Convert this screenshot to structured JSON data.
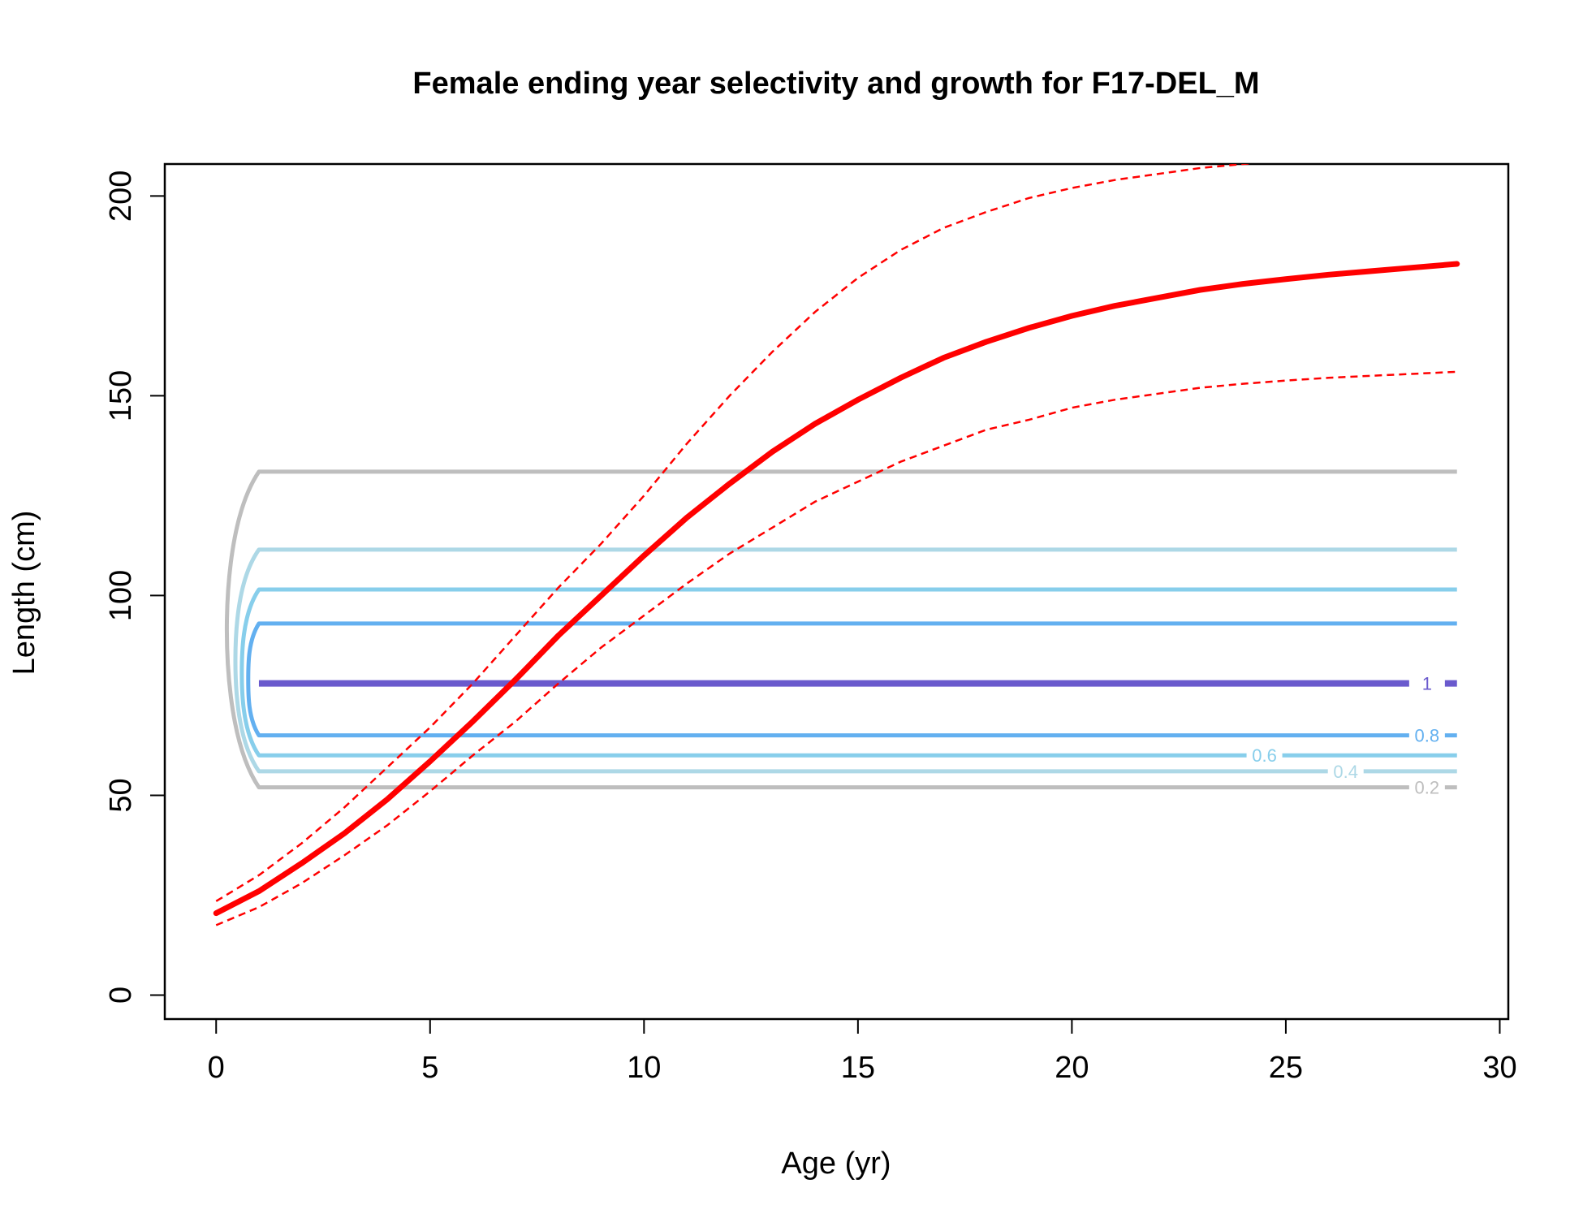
{
  "chart_data": {
    "type": "line",
    "title": "Female ending year selectivity and growth for F17-DEL_M",
    "xlabel": "Age (yr)",
    "ylabel": "Length (cm)",
    "xlim": [
      -1.2,
      30.2
    ],
    "ylim": [
      -6,
      208
    ],
    "x_ticks": [
      0,
      5,
      10,
      15,
      20,
      25,
      30
    ],
    "y_ticks": [
      0,
      50,
      100,
      150,
      200
    ],
    "grid": false,
    "legend": "none",
    "growth": {
      "color": "#ff0000",
      "ages": [
        0,
        1,
        2,
        3,
        4,
        5,
        6,
        7,
        8,
        9,
        10,
        11,
        12,
        13,
        14,
        15,
        16,
        17,
        18,
        19,
        20,
        21,
        22,
        23,
        24,
        25,
        26,
        27,
        28,
        29
      ],
      "mean": [
        20.5,
        26,
        33,
        40.5,
        49,
        58.5,
        68.5,
        79,
        90,
        100,
        110,
        119.5,
        128,
        136,
        143,
        149,
        154.5,
        159.5,
        163.5,
        167,
        170,
        172.5,
        174.5,
        176.5,
        178,
        179.2,
        180.3,
        181.2,
        182.1,
        183
      ],
      "upper": [
        23.5,
        30,
        38,
        47,
        57,
        67,
        78,
        90,
        102,
        113,
        125,
        138,
        150,
        161,
        171,
        179.5,
        186.5,
        192,
        196,
        199.5,
        202,
        204,
        205.5,
        207,
        208,
        209,
        209.5,
        210,
        210.5,
        211
      ],
      "lower": [
        17.5,
        22,
        28,
        35,
        42.5,
        51,
        60,
        68.5,
        78,
        87,
        95,
        103,
        110.5,
        117,
        123.5,
        128.5,
        133.5,
        137.5,
        141.5,
        144,
        147,
        149,
        150.5,
        152,
        153,
        153.8,
        154.5,
        155,
        155.5,
        156
      ]
    },
    "selectivity_contours": [
      {
        "level": "0.2",
        "color": "#bebebe",
        "lower": 52,
        "upper": 131,
        "bulge_age": 0.25
      },
      {
        "level": "0.4",
        "color": "#add8e6",
        "lower": 56,
        "upper": 111.5,
        "bulge_age": 0.45
      },
      {
        "level": "0.6",
        "color": "#87ceeb",
        "lower": 60,
        "upper": 101.5,
        "bulge_age": 0.6
      },
      {
        "level": "0.8",
        "color": "#63b0f0",
        "lower": 65,
        "upper": 93,
        "bulge_age": 0.75
      },
      {
        "level": "1",
        "color": "#6a5acd",
        "lower": 78,
        "upper": 78,
        "bulge_age": 1.0
      }
    ]
  }
}
